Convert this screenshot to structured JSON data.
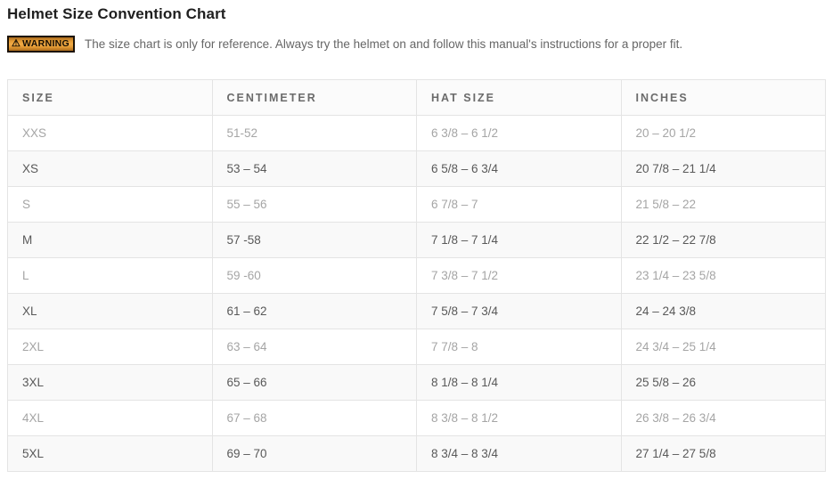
{
  "page": {
    "title": "Helmet Size Convention Chart"
  },
  "warning": {
    "icon": "⚠",
    "badge_label": "WARNING",
    "text": "The size chart is only for reference. Always try the helmet on and follow this manual's instructions for a proper fit."
  },
  "colors": {
    "warning_badge_bg": "#e8a23c",
    "warning_badge_border": "#1c1205",
    "row_alt_bg": "#f9f9f9",
    "row_text_dark": "#595959",
    "row_text_light": "#a5a5a5",
    "border": "#e4e4e4"
  },
  "table": {
    "columns": [
      "SIZE",
      "CENTIMETER",
      "HAT SIZE",
      "INCHES"
    ],
    "column_keys": [
      "size",
      "centimeter",
      "hat_size",
      "inches"
    ],
    "rows": [
      {
        "size": "XXS",
        "centimeter": "51-52",
        "hat_size": "6 3/8 – 6 1/2",
        "inches": "20 – 20 1/2"
      },
      {
        "size": "XS",
        "centimeter": "53 – 54",
        "hat_size": "6 5/8 – 6 3/4",
        "inches": "20 7/8 – 21 1/4"
      },
      {
        "size": "S",
        "centimeter": "55 – 56",
        "hat_size": "6 7/8 – 7",
        "inches": "21 5/8 – 22"
      },
      {
        "size": "M",
        "centimeter": "57 -58",
        "hat_size": "7 1/8 – 7 1/4",
        "inches": "22 1/2 – 22 7/8"
      },
      {
        "size": "L",
        "centimeter": "59 -60",
        "hat_size": "7 3/8 – 7 1/2",
        "inches": "23 1/4 – 23 5/8"
      },
      {
        "size": "XL",
        "centimeter": "61 – 62",
        "hat_size": "7 5/8 – 7 3/4",
        "inches": "24 – 24 3/8"
      },
      {
        "size": "2XL",
        "centimeter": "63 – 64",
        "hat_size": "7 7/8 – 8",
        "inches": "24 3/4 – 25 1/4"
      },
      {
        "size": "3XL",
        "centimeter": "65 – 66",
        "hat_size": "8 1/8 – 8 1/4",
        "inches": "25 5/8 – 26"
      },
      {
        "size": "4XL",
        "centimeter": "67 – 68",
        "hat_size": "8 3/8 – 8 1/2",
        "inches": "26 3/8 – 26 3/4"
      },
      {
        "size": "5XL",
        "centimeter": "69 – 70",
        "hat_size": "8 3/4 – 8 3/4",
        "inches": "27 1/4 – 27 5/8"
      }
    ]
  }
}
